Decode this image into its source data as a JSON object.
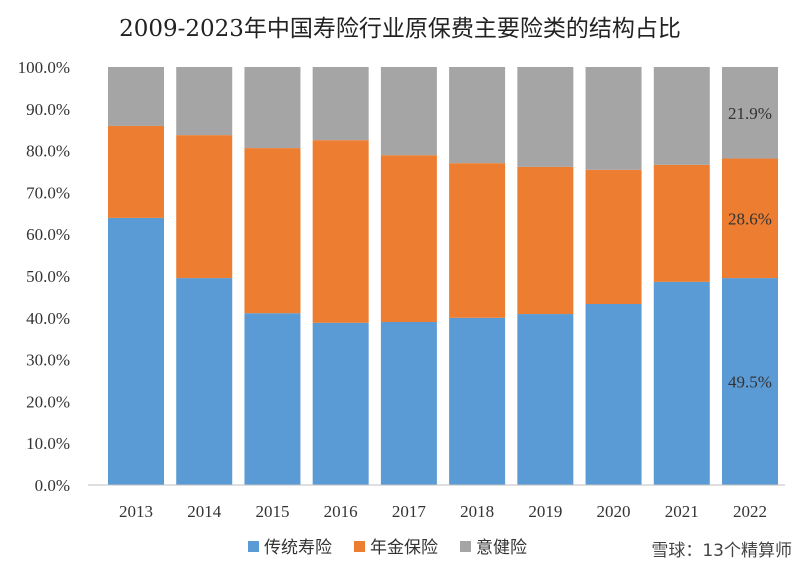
{
  "chart_data": {
    "type": "bar",
    "stacked": true,
    "title": "2009-2023年中国寿险行业原保费主要险类的结构占比",
    "categories": [
      "2013",
      "2014",
      "2015",
      "2016",
      "2017",
      "2018",
      "2019",
      "2020",
      "2021",
      "2022"
    ],
    "series": [
      {
        "name": "传统寿险",
        "color": "#5B9BD5",
        "values": [
          63.9,
          49.5,
          41.1,
          38.8,
          39.0,
          40.0,
          40.9,
          43.3,
          48.6,
          49.5
        ]
      },
      {
        "name": "年金保险",
        "color": "#ED7D31",
        "values": [
          22.0,
          34.2,
          39.5,
          43.7,
          39.9,
          37.0,
          35.2,
          32.1,
          28.0,
          28.6
        ]
      },
      {
        "name": "意健险",
        "color": "#A5A5A5",
        "values": [
          14.1,
          16.3,
          19.4,
          17.5,
          21.1,
          23.0,
          23.9,
          24.6,
          23.4,
          21.9
        ]
      }
    ],
    "data_labels": [
      {
        "category": "2022",
        "series": "传统寿险",
        "text": "49.5%"
      },
      {
        "category": "2022",
        "series": "年金保险",
        "text": "28.6%"
      },
      {
        "category": "2022",
        "series": "意健险",
        "text": "21.9%"
      }
    ],
    "yticks": [
      "0.0%",
      "10.0%",
      "20.0%",
      "30.0%",
      "40.0%",
      "50.0%",
      "60.0%",
      "70.0%",
      "80.0%",
      "90.0%",
      "100.0%"
    ],
    "ylim": [
      0,
      100
    ],
    "grid": false,
    "legend": "bottom"
  },
  "watermark": "雪球：13个精算师"
}
